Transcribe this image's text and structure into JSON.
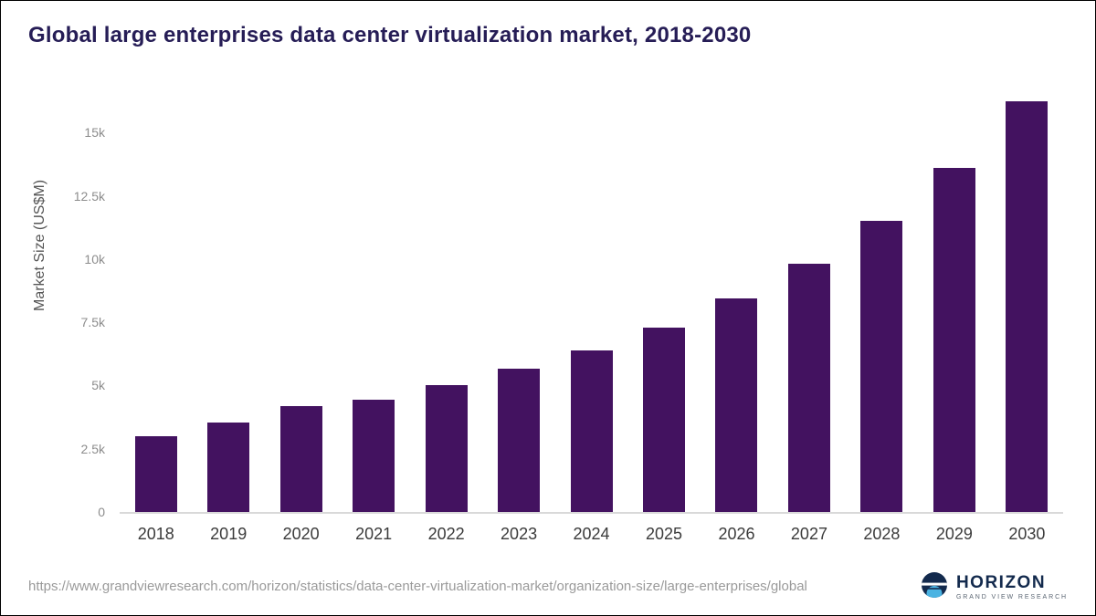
{
  "title": "Global large enterprises data center virtualization market, 2018-2030",
  "source_url": "https://www.grandviewresearch.com/horizon/statistics/data-center-virtualization-market/organization-size/large-enterprises/global",
  "logo": {
    "name": "HORIZON",
    "subtitle": "GRAND VIEW RESEARCH"
  },
  "colors": {
    "bar": "#431260",
    "title": "#261d56",
    "baseline": "#d9d9d9",
    "logo_navy": "#132a4d",
    "logo_blue": "#4ab3e2"
  },
  "chart_data": {
    "type": "bar",
    "title": "Global large enterprises data center virtualization market, 2018-2030",
    "categories": [
      "2018",
      "2019",
      "2020",
      "2021",
      "2022",
      "2023",
      "2024",
      "2025",
      "2026",
      "2027",
      "2028",
      "2029",
      "2030"
    ],
    "values": [
      3000,
      3550,
      4200,
      4450,
      5000,
      5650,
      6400,
      7300,
      8450,
      9800,
      11500,
      13600,
      16250
    ],
    "xlabel": "",
    "ylabel": "Market Size (US$M)",
    "ylim": [
      0,
      16600
    ],
    "yticks": [
      {
        "label": "0",
        "value": 0
      },
      {
        "label": "2.5k",
        "value": 2500
      },
      {
        "label": "5k",
        "value": 5000
      },
      {
        "label": "7.5k",
        "value": 7500
      },
      {
        "label": "10k",
        "value": 10000
      },
      {
        "label": "12.5k",
        "value": 12500
      },
      {
        "label": "15k",
        "value": 15000
      }
    ],
    "grid": false,
    "legend": "none",
    "bar_color": "#431260"
  }
}
